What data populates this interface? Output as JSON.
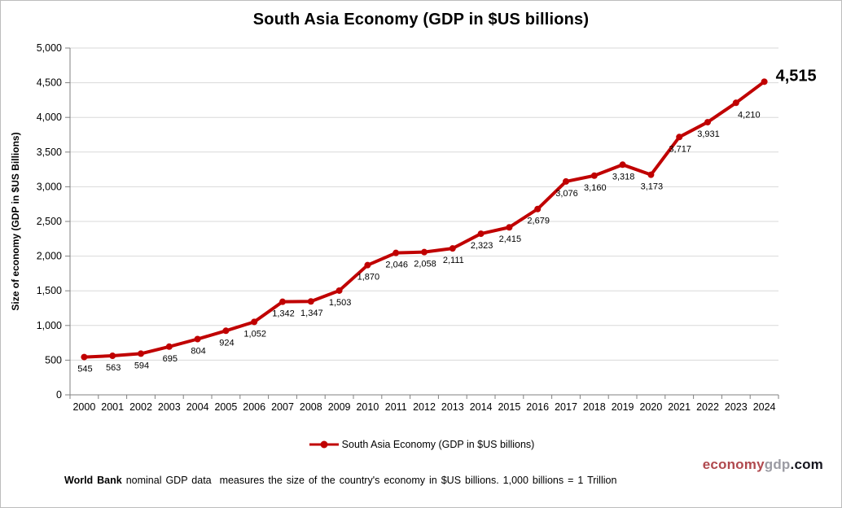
{
  "title": "South Asia Economy (GDP in $US billions)",
  "chart_data": {
    "type": "line",
    "title": "South Asia Economy (GDP in $US billions)",
    "x": [
      "2000",
      "2001",
      "2002",
      "2003",
      "2004",
      "2005",
      "2006",
      "2007",
      "2008",
      "2009",
      "2010",
      "2011",
      "2012",
      "2013",
      "2014",
      "2015",
      "2016",
      "2017",
      "2018",
      "2019",
      "2020",
      "2021",
      "2022",
      "2023",
      "2024"
    ],
    "series": [
      {
        "name": "South Asia Economy (GDP in $US billions)",
        "values": [
          545,
          563,
          594,
          695,
          804,
          924,
          1052,
          1342,
          1347,
          1503,
          1870,
          2046,
          2058,
          2111,
          2323,
          2415,
          2679,
          3076,
          3160,
          3318,
          3173,
          3717,
          3931,
          4210,
          4515
        ],
        "point_labels": [
          "545",
          "563",
          "594",
          "695",
          "804",
          "924",
          "1,052",
          "1,342",
          "1,347",
          "1,503",
          "1,870",
          "2,046",
          "2,058",
          "2,111",
          "2,323",
          "2,415",
          "2,679",
          "3,076",
          "3,160",
          "3,318",
          "3,173",
          "3,717",
          "3,931",
          "4,210",
          "4,515"
        ],
        "color": "#c00000"
      }
    ],
    "ylabel": "Size of economy (GDP in $US Billions)",
    "xlabel": "",
    "ylim": [
      0,
      5000
    ],
    "ytick_step": 500,
    "ytick_labels": [
      "0",
      "500",
      "1,000",
      "1,500",
      "2,000",
      "2,500",
      "3,000",
      "3,500",
      "4,000",
      "4,500",
      "5,000"
    ],
    "grid": true,
    "gridline_color": "#d9d9d9",
    "axis_color": "#808080",
    "legend_position": "bottom"
  },
  "legend": {
    "label": "South Asia Economy (GDP in $US billions)"
  },
  "footer": {
    "bold": "World Bank",
    "text": " nominal GDP data  measures the size of the country's economy in $US billions. 1,000 billions = 1 Trillion"
  },
  "branding": {
    "part1": "economy",
    "part2": "gdp",
    "part3": ".com",
    "color1": "#b0494e",
    "color2": "#9b9ba3",
    "color3": "#16161f"
  }
}
